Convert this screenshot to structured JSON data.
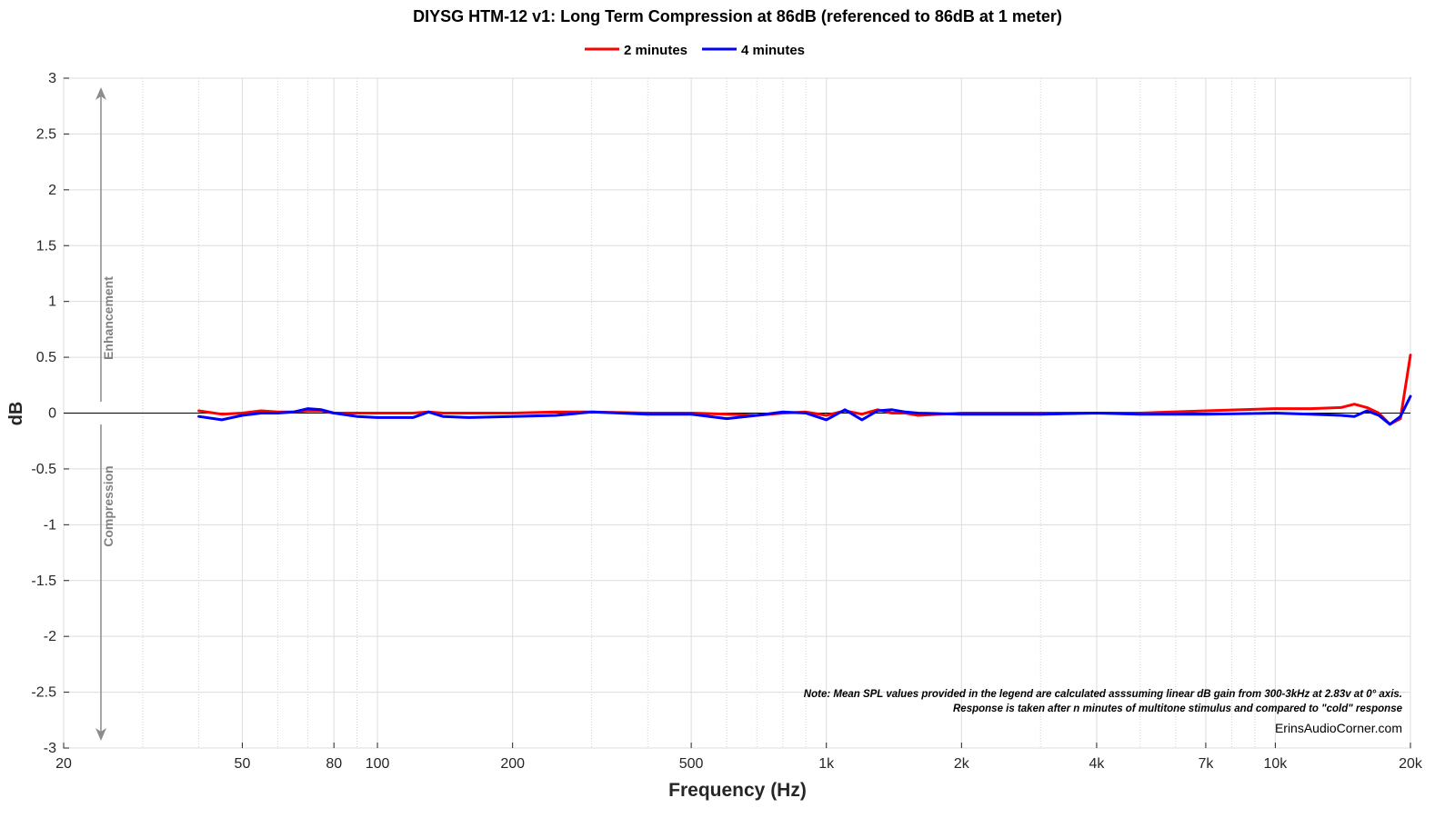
{
  "chart_data": {
    "type": "line",
    "title": "DIYSG HTM-12 v1: Long Term Compression at 86dB (referenced to 86dB at 1 meter)",
    "xlabel": "Frequency (Hz)",
    "ylabel": "dB",
    "x_scale": "log",
    "xlim": [
      20,
      20000
    ],
    "ylim": [
      -3,
      3
    ],
    "x_ticks": [
      20,
      50,
      80,
      100,
      200,
      500,
      1000,
      2000,
      4000,
      7000,
      10000,
      20000
    ],
    "x_tick_labels": [
      "20",
      "50",
      "80",
      "100",
      "200",
      "500",
      "1k",
      "2k",
      "4k",
      "7k",
      "10k",
      "20k"
    ],
    "y_ticks": [
      3,
      2.5,
      2,
      1.5,
      1,
      0.5,
      0,
      -0.5,
      -1,
      -1.5,
      -2,
      -2.5,
      -3
    ],
    "y_tick_labels": [
      "3",
      "2.5",
      "2",
      "1.5",
      "1",
      "0.5",
      "0",
      "-0.5",
      "-1",
      "-1.5",
      "-2",
      "-2.5",
      "-3"
    ],
    "grid": true,
    "legend_position": "top-center",
    "series": [
      {
        "name": "2 minutes",
        "color": "#ff0000",
        "x": [
          40,
          45,
          50,
          55,
          60,
          65,
          70,
          75,
          80,
          90,
          100,
          120,
          130,
          140,
          160,
          200,
          250,
          300,
          400,
          500,
          600,
          700,
          800,
          900,
          1000,
          1100,
          1200,
          1300,
          1400,
          1500,
          1600,
          2000,
          3000,
          4000,
          5000,
          7000,
          10000,
          12000,
          14000,
          15000,
          16000,
          17000,
          18000,
          19000,
          20000
        ],
        "y": [
          0.02,
          -0.01,
          0.0,
          0.02,
          0.01,
          0.01,
          0.02,
          0.02,
          0.0,
          0.0,
          0.0,
          0.0,
          0.01,
          0.0,
          0.0,
          0.0,
          0.01,
          0.01,
          0.0,
          0.0,
          -0.01,
          -0.02,
          0.0,
          0.01,
          -0.02,
          0.02,
          -0.01,
          0.03,
          0.0,
          0.0,
          -0.02,
          0.0,
          0.0,
          0.0,
          0.0,
          0.02,
          0.04,
          0.04,
          0.05,
          0.08,
          0.05,
          0.0,
          -0.1,
          -0.05,
          0.52
        ]
      },
      {
        "name": "4 minutes",
        "color": "#0000ff",
        "x": [
          40,
          45,
          50,
          55,
          60,
          65,
          70,
          75,
          80,
          90,
          100,
          120,
          130,
          140,
          160,
          200,
          250,
          300,
          400,
          500,
          600,
          700,
          800,
          900,
          1000,
          1100,
          1200,
          1300,
          1400,
          1500,
          1600,
          2000,
          3000,
          4000,
          5000,
          7000,
          10000,
          12000,
          14000,
          15000,
          16000,
          17000,
          18000,
          19000,
          20000
        ],
        "y": [
          -0.03,
          -0.06,
          -0.02,
          0.0,
          0.0,
          0.01,
          0.04,
          0.03,
          0.0,
          -0.03,
          -0.04,
          -0.04,
          0.01,
          -0.03,
          -0.04,
          -0.03,
          -0.02,
          0.01,
          -0.01,
          -0.01,
          -0.05,
          -0.02,
          0.01,
          0.0,
          -0.06,
          0.03,
          -0.06,
          0.02,
          0.03,
          0.01,
          0.0,
          -0.01,
          -0.01,
          0.0,
          -0.01,
          -0.01,
          0.0,
          -0.01,
          -0.02,
          -0.03,
          0.02,
          -0.02,
          -0.1,
          -0.03,
          0.15
        ]
      }
    ],
    "annotations": {
      "enhancement": "Enhancement",
      "compression": "Compression",
      "note_line1": "Note: Mean SPL values provided in the legend are calculated asssuming linear dB gain from 300-3kHz at 2.83v at 0° axis.",
      "note_line2": "Response is taken after n minutes of multitone stimulus and compared to \"cold\" response",
      "watermark": "ErinsAudioCorner.com"
    }
  }
}
